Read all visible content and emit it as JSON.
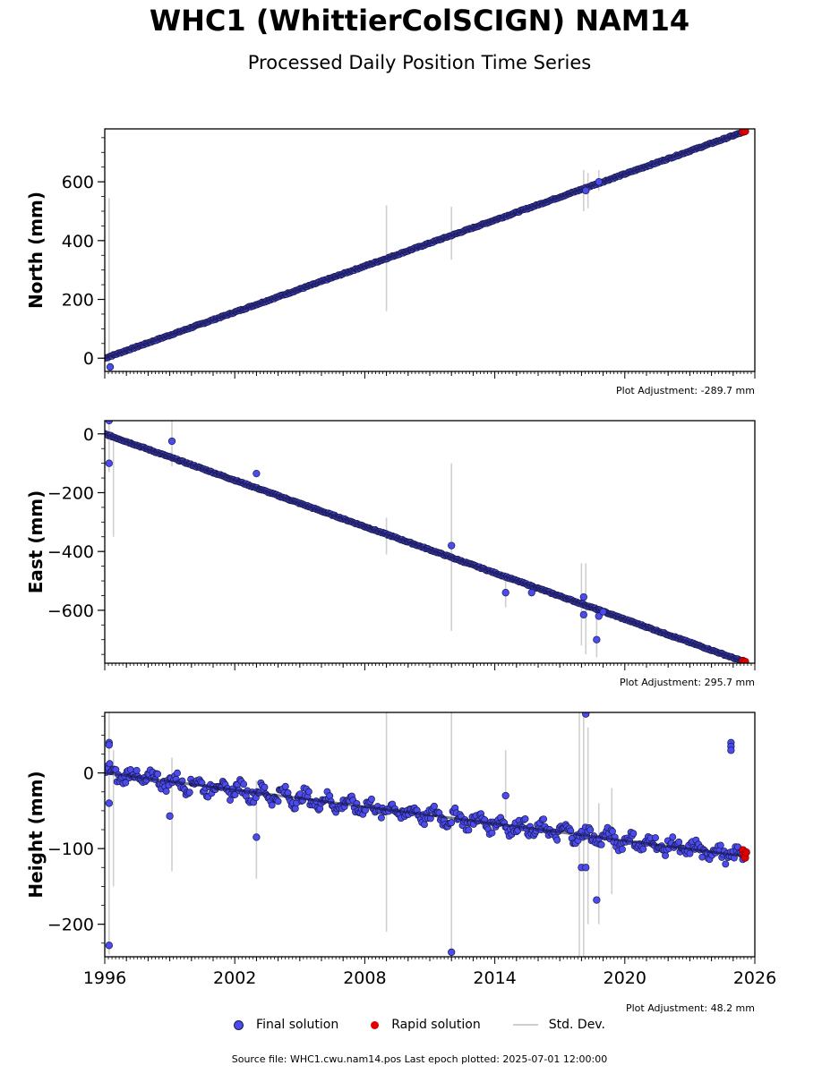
{
  "title": "WHC1 (WhittierColSCIGN) NAM14",
  "subtitle": "Processed Daily Position Time Series",
  "legend": {
    "final": "Final solution",
    "rapid": "Rapid solution",
    "stddev": "Std. Dev."
  },
  "colors": {
    "final": "#4b4bf0",
    "final_edge": "#1a1a4a",
    "rapid": "#e00000",
    "stddev": "#cfcfcf",
    "trend": "#141440"
  },
  "source_text": "Source file: WHC1.cwu.nam14.pos  Last epoch plotted: 2025-07-01 12:00:00",
  "chart_data": [
    {
      "type": "scatter",
      "name": "north",
      "ylabel": "North (mm)",
      "adjustment": "Plot Adjustment: -289.7 mm",
      "xlim": [
        1996,
        2026
      ],
      "ylim": [
        -45,
        780
      ],
      "yticks": [
        0,
        200,
        400,
        600
      ],
      "ytick_labels": [
        "0",
        "200",
        "400",
        "600"
      ],
      "trend": {
        "x": [
          1996.0,
          2025.5
        ],
        "y": [
          0,
          770
        ],
        "spread": 4
      },
      "outliers": [
        [
          1996.25,
          -30
        ],
        [
          2018.2,
          570
        ],
        [
          2018.8,
          600
        ]
      ],
      "errorbars": [
        [
          1996.2,
          -45,
          545
        ],
        [
          2009.0,
          160,
          520
        ],
        [
          2012.0,
          335,
          515
        ],
        [
          2018.1,
          500,
          640
        ],
        [
          2018.3,
          510,
          630
        ],
        [
          2018.8,
          570,
          640
        ]
      ],
      "rapid": [
        [
          2025.45,
          770
        ],
        [
          2025.55,
          772
        ]
      ],
      "show_xticklabels": false
    },
    {
      "type": "scatter",
      "name": "east",
      "ylabel": "East (mm)",
      "adjustment": "Plot Adjustment: 295.7 mm",
      "xlim": [
        1996,
        2026
      ],
      "ylim": [
        -780,
        45
      ],
      "yticks": [
        -600,
        -400,
        -200,
        0
      ],
      "ytick_labels": [
        "−600",
        "−400",
        "−200",
        "0"
      ],
      "trend": {
        "x": [
          1996.0,
          2025.5
        ],
        "y": [
          0,
          -775
        ],
        "spread": 4
      },
      "outliers": [
        [
          1996.2,
          45
        ],
        [
          1996.2,
          -100
        ],
        [
          1999.1,
          -25
        ],
        [
          2003.0,
          -135
        ],
        [
          2012.0,
          -380
        ],
        [
          2014.5,
          -540
        ],
        [
          2015.7,
          -540
        ],
        [
          2018.1,
          -555
        ],
        [
          2018.1,
          -615
        ],
        [
          2018.7,
          -700
        ],
        [
          2018.8,
          -620
        ],
        [
          2019.0,
          -605
        ]
      ],
      "errorbars": [
        [
          1996.2,
          -130,
          40
        ],
        [
          1996.4,
          -350,
          -20
        ],
        [
          1999.1,
          -110,
          45
        ],
        [
          2009.0,
          -410,
          -285
        ],
        [
          2012.0,
          -670,
          -100
        ],
        [
          2014.5,
          -590,
          -500
        ],
        [
          2018.0,
          -720,
          -440
        ],
        [
          2018.2,
          -750,
          -440
        ],
        [
          2018.7,
          -760,
          -580
        ]
      ],
      "rapid": [
        [
          2025.45,
          -772
        ],
        [
          2025.55,
          -775
        ]
      ],
      "show_xticklabels": false
    },
    {
      "type": "scatter",
      "name": "height",
      "ylabel": "Height (mm)",
      "adjustment": "Plot Adjustment: 48.2 mm",
      "xlim": [
        1996,
        2026
      ],
      "ylim": [
        -243,
        80
      ],
      "yticks": [
        -200,
        -100,
        0
      ],
      "ytick_labels": [
        "−200",
        "−100",
        "0"
      ],
      "xticks": [
        1996,
        2002,
        2008,
        2014,
        2020,
        2026
      ],
      "xtick_labels": [
        "1996",
        "2002",
        "2008",
        "2014",
        "2020",
        "2026"
      ],
      "trend": {
        "x": [
          1996.0,
          2025.5
        ],
        "y": [
          0,
          -110
        ],
        "spread": 16
      },
      "outliers": [
        [
          1996.2,
          40
        ],
        [
          1996.2,
          37
        ],
        [
          1996.2,
          -40
        ],
        [
          1996.2,
          -228
        ],
        [
          1999.0,
          -57
        ],
        [
          2003.0,
          -85
        ],
        [
          2012.0,
          -237
        ],
        [
          2014.5,
          -30
        ],
        [
          2018.0,
          -125
        ],
        [
          2018.2,
          -125
        ],
        [
          2018.2,
          78
        ],
        [
          2018.7,
          -168
        ],
        [
          2024.9,
          40
        ],
        [
          2024.9,
          35
        ],
        [
          2024.9,
          30
        ]
      ],
      "errorbars": [
        [
          1996.2,
          -240,
          80
        ],
        [
          1996.4,
          -150,
          30
        ],
        [
          1999.1,
          -130,
          20
        ],
        [
          2003.0,
          -140,
          -10
        ],
        [
          2009.0,
          -210,
          80
        ],
        [
          2012.0,
          -243,
          80
        ],
        [
          2014.5,
          -60,
          30
        ],
        [
          2017.9,
          -243,
          80
        ],
        [
          2018.1,
          -243,
          80
        ],
        [
          2018.3,
          -200,
          60
        ],
        [
          2018.8,
          -200,
          -40
        ],
        [
          2019.4,
          -160,
          -20
        ]
      ],
      "rapid": [
        [
          2025.45,
          -102
        ],
        [
          2025.5,
          -108
        ],
        [
          2025.55,
          -112
        ],
        [
          2025.6,
          -105
        ]
      ],
      "show_xticklabels": true
    }
  ]
}
